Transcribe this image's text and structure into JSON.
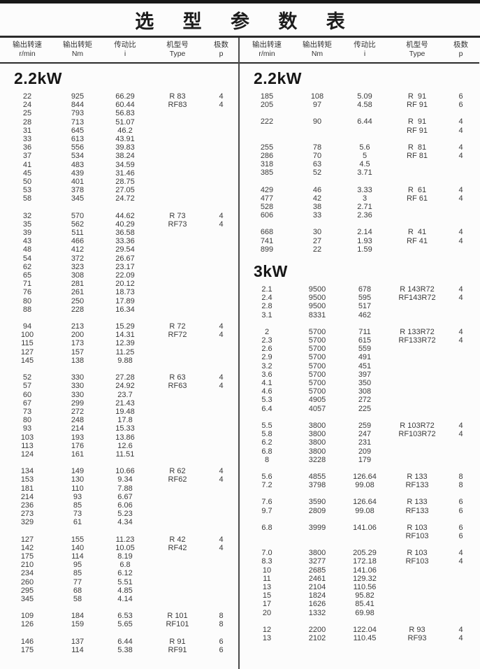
{
  "title": "选 型 参 数 表",
  "header": {
    "speed_cn": "输出转速",
    "speed_unit": "r/min",
    "torque_cn": "输出转矩",
    "torque_unit": "Nm",
    "ratio_cn": "传动比",
    "ratio_unit": "i",
    "type_cn": "机型号",
    "type_unit": "Type",
    "poles_cn": "极数",
    "poles_unit": "p"
  },
  "colors": {
    "line": "#2b2b2b",
    "divider": "#4a4a4a",
    "text": "#3a3a3a",
    "background": "#fcfcfc"
  },
  "columns": [
    {
      "sections": [
        {
          "label": "2.2kW",
          "groups": [
            {
              "rows": [
                [
                  "22",
                  "925",
                  "66.29",
                  "R 83",
                  "4"
                ],
                [
                  "24",
                  "844",
                  "60.44",
                  "RF83",
                  "4"
                ],
                [
                  "25",
                  "793",
                  "56.83",
                  "",
                  ""
                ],
                [
                  "28",
                  "713",
                  "51.07",
                  "",
                  ""
                ],
                [
                  "31",
                  "645",
                  "46.2",
                  "",
                  ""
                ],
                [
                  "33",
                  "613",
                  "43.91",
                  "",
                  ""
                ],
                [
                  "36",
                  "556",
                  "39.83",
                  "",
                  ""
                ],
                [
                  "37",
                  "534",
                  "38.24",
                  "",
                  ""
                ],
                [
                  "41",
                  "483",
                  "34.59",
                  "",
                  ""
                ],
                [
                  "45",
                  "439",
                  "31.46",
                  "",
                  ""
                ],
                [
                  "50",
                  "401",
                  "28.75",
                  "",
                  ""
                ],
                [
                  "53",
                  "378",
                  "27.05",
                  "",
                  ""
                ],
                [
                  "58",
                  "345",
                  "24.72",
                  "",
                  ""
                ]
              ]
            },
            {
              "rows": [
                [
                  "32",
                  "570",
                  "44.62",
                  "R 73",
                  "4"
                ],
                [
                  "35",
                  "562",
                  "40.29",
                  "RF73",
                  "4"
                ],
                [
                  "39",
                  "511",
                  "36.58",
                  "",
                  ""
                ],
                [
                  "43",
                  "466",
                  "33.36",
                  "",
                  ""
                ],
                [
                  "48",
                  "412",
                  "29.54",
                  "",
                  ""
                ],
                [
                  "54",
                  "372",
                  "26.67",
                  "",
                  ""
                ],
                [
                  "62",
                  "323",
                  "23.17",
                  "",
                  ""
                ],
                [
                  "65",
                  "308",
                  "22.09",
                  "",
                  ""
                ],
                [
                  "71",
                  "281",
                  "20.12",
                  "",
                  ""
                ],
                [
                  "76",
                  "261",
                  "18.73",
                  "",
                  ""
                ],
                [
                  "80",
                  "250",
                  "17.89",
                  "",
                  ""
                ],
                [
                  "88",
                  "228",
                  "16.34",
                  "",
                  ""
                ]
              ]
            },
            {
              "rows": [
                [
                  "94",
                  "213",
                  "15.29",
                  "R 72",
                  "4"
                ],
                [
                  "100",
                  "200",
                  "14.31",
                  "RF72",
                  "4"
                ],
                [
                  "115",
                  "173",
                  "12.39",
                  "",
                  ""
                ],
                [
                  "127",
                  "157",
                  "11.25",
                  "",
                  ""
                ],
                [
                  "145",
                  "138",
                  "9.88",
                  "",
                  ""
                ]
              ]
            },
            {
              "rows": [
                [
                  "52",
                  "330",
                  "27.28",
                  "R 63",
                  "4"
                ],
                [
                  "57",
                  "330",
                  "24.92",
                  "RF63",
                  "4"
                ],
                [
                  "60",
                  "330",
                  "23.7",
                  "",
                  ""
                ],
                [
                  "67",
                  "299",
                  "21.43",
                  "",
                  ""
                ],
                [
                  "73",
                  "272",
                  "19.48",
                  "",
                  ""
                ],
                [
                  "80",
                  "248",
                  "17.8",
                  "",
                  ""
                ],
                [
                  "93",
                  "214",
                  "15.33",
                  "",
                  ""
                ],
                [
                  "103",
                  "193",
                  "13.86",
                  "",
                  ""
                ],
                [
                  "113",
                  "176",
                  "12.6",
                  "",
                  ""
                ],
                [
                  "124",
                  "161",
                  "11.51",
                  "",
                  ""
                ]
              ]
            },
            {
              "rows": [
                [
                  "134",
                  "149",
                  "10.66",
                  "R 62",
                  "4"
                ],
                [
                  "153",
                  "130",
                  "9.34",
                  "RF62",
                  "4"
                ],
                [
                  "181",
                  "110",
                  "7.88",
                  "",
                  ""
                ],
                [
                  "214",
                  "93",
                  "6.67",
                  "",
                  ""
                ],
                [
                  "236",
                  "85",
                  "6.06",
                  "",
                  ""
                ],
                [
                  "273",
                  "73",
                  "5.23",
                  "",
                  ""
                ],
                [
                  "329",
                  "61",
                  "4.34",
                  "",
                  ""
                ]
              ]
            },
            {
              "rows": [
                [
                  "127",
                  "155",
                  "11.23",
                  "R 42",
                  "4"
                ],
                [
                  "142",
                  "140",
                  "10.05",
                  "RF42",
                  "4"
                ],
                [
                  "175",
                  "114",
                  "8.19",
                  "",
                  ""
                ],
                [
                  "210",
                  "95",
                  "6.8",
                  "",
                  ""
                ],
                [
                  "234",
                  "85",
                  "6.12",
                  "",
                  ""
                ],
                [
                  "260",
                  "77",
                  "5.51",
                  "",
                  ""
                ],
                [
                  "295",
                  "68",
                  "4.85",
                  "",
                  ""
                ],
                [
                  "345",
                  "58",
                  "4.14",
                  "",
                  ""
                ]
              ]
            },
            {
              "rows": [
                [
                  "109",
                  "184",
                  "6.53",
                  "R 101",
                  "8"
                ],
                [
                  "126",
                  "159",
                  "5.65",
                  "RF101",
                  "8"
                ]
              ]
            },
            {
              "rows": [
                [
                  "146",
                  "137",
                  "6.44",
                  "R 91",
                  "6"
                ],
                [
                  "175",
                  "114",
                  "5.38",
                  "RF91",
                  "6"
                ]
              ]
            }
          ]
        }
      ]
    },
    {
      "sections": [
        {
          "label": "2.2kW",
          "groups": [
            {
              "rows": [
                [
                  "185",
                  "108",
                  "5.09",
                  "R  91",
                  "6"
                ],
                [
                  "205",
                  "97",
                  "4.58",
                  "RF 91",
                  "6"
                ]
              ]
            },
            {
              "rows": [
                [
                  "222",
                  "90",
                  "6.44",
                  "R  91",
                  "4"
                ],
                [
                  "",
                  "",
                  "",
                  "RF 91",
                  "4"
                ]
              ]
            },
            {
              "rows": [
                [
                  "255",
                  "78",
                  "5.6",
                  "R  81",
                  "4"
                ],
                [
                  "286",
                  "70",
                  "5",
                  "RF 81",
                  "4"
                ],
                [
                  "318",
                  "63",
                  "4.5",
                  "",
                  ""
                ],
                [
                  "385",
                  "52",
                  "3.71",
                  "",
                  ""
                ]
              ]
            },
            {
              "rows": [
                [
                  "429",
                  "46",
                  "3.33",
                  "R  61",
                  "4"
                ],
                [
                  "477",
                  "42",
                  "3",
                  "RF 61",
                  "4"
                ],
                [
                  "528",
                  "38",
                  "2.71",
                  "",
                  ""
                ],
                [
                  "606",
                  "33",
                  "2.36",
                  "",
                  ""
                ]
              ]
            },
            {
              "rows": [
                [
                  "668",
                  "30",
                  "2.14",
                  "R  41",
                  "4"
                ],
                [
                  "741",
                  "27",
                  "1.93",
                  "RF 41",
                  "4"
                ],
                [
                  "899",
                  "22",
                  "1.59",
                  "",
                  ""
                ]
              ]
            }
          ]
        },
        {
          "label": "3kW",
          "groups": [
            {
              "rows": [
                [
                  "2.1",
                  "9500",
                  "678",
                  "R 143R72",
                  "4"
                ],
                [
                  "2.4",
                  "9500",
                  "595",
                  "RF143R72",
                  "4"
                ],
                [
                  "2.8",
                  "9500",
                  "517",
                  "",
                  ""
                ],
                [
                  "3.1",
                  "8331",
                  "462",
                  "",
                  ""
                ]
              ]
            },
            {
              "rows": [
                [
                  "2",
                  "5700",
                  "711",
                  "R 133R72",
                  "4"
                ],
                [
                  "2.3",
                  "5700",
                  "615",
                  "RF133R72",
                  "4"
                ],
                [
                  "2.6",
                  "5700",
                  "559",
                  "",
                  ""
                ],
                [
                  "2.9",
                  "5700",
                  "491",
                  "",
                  ""
                ],
                [
                  "3.2",
                  "5700",
                  "451",
                  "",
                  ""
                ],
                [
                  "3.6",
                  "5700",
                  "397",
                  "",
                  ""
                ],
                [
                  "4.1",
                  "5700",
                  "350",
                  "",
                  ""
                ],
                [
                  "4.6",
                  "5700",
                  "308",
                  "",
                  ""
                ],
                [
                  "5.3",
                  "4905",
                  "272",
                  "",
                  ""
                ],
                [
                  "6.4",
                  "4057",
                  "225",
                  "",
                  ""
                ]
              ]
            },
            {
              "rows": [
                [
                  "5.5",
                  "3800",
                  "259",
                  "R 103R72",
                  "4"
                ],
                [
                  "5.8",
                  "3800",
                  "247",
                  "RF103R72",
                  "4"
                ],
                [
                  "6.2",
                  "3800",
                  "231",
                  "",
                  ""
                ],
                [
                  "6.8",
                  "3800",
                  "209",
                  "",
                  ""
                ],
                [
                  "8",
                  "3228",
                  "179",
                  "",
                  ""
                ]
              ]
            },
            {
              "rows": [
                [
                  "5.6",
                  "4855",
                  "126.64",
                  "R 133",
                  "8"
                ],
                [
                  "7.2",
                  "3798",
                  "99.08",
                  "RF133",
                  "8"
                ]
              ]
            },
            {
              "rows": [
                [
                  "7.6",
                  "3590",
                  "126.64",
                  "R 133",
                  "6"
                ],
                [
                  "9.7",
                  "2809",
                  "99.08",
                  "RF133",
                  "6"
                ]
              ]
            },
            {
              "rows": [
                [
                  "6.8",
                  "3999",
                  "141.06",
                  "R 103",
                  "6"
                ],
                [
                  "",
                  "",
                  "",
                  "RF103",
                  "6"
                ]
              ]
            },
            {
              "rows": [
                [
                  "7.0",
                  "3800",
                  "205.29",
                  "R 103",
                  "4"
                ],
                [
                  "8.3",
                  "3277",
                  "172.18",
                  "RF103",
                  "4"
                ],
                [
                  "10",
                  "2685",
                  "141.06",
                  "",
                  ""
                ],
                [
                  "11",
                  "2461",
                  "129.32",
                  "",
                  ""
                ],
                [
                  "13",
                  "2104",
                  "110.56",
                  "",
                  ""
                ],
                [
                  "15",
                  "1824",
                  "95.82",
                  "",
                  ""
                ],
                [
                  "17",
                  "1626",
                  "85.41",
                  "",
                  ""
                ],
                [
                  "20",
                  "1332",
                  "69.98",
                  "",
                  ""
                ]
              ]
            },
            {
              "rows": [
                [
                  "12",
                  "2200",
                  "122.04",
                  "R 93",
                  "4"
                ],
                [
                  "13",
                  "2102",
                  "110.45",
                  "RF93",
                  "4"
                ]
              ]
            }
          ]
        }
      ]
    }
  ]
}
